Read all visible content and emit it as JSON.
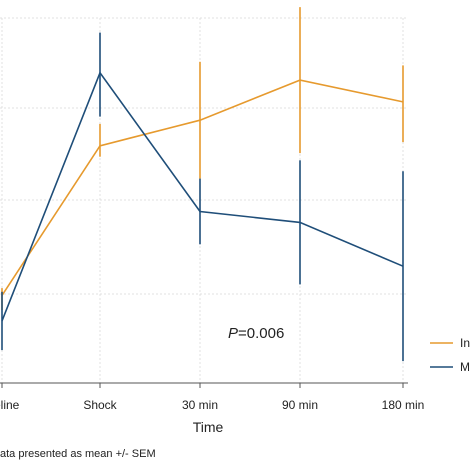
{
  "chart_data": {
    "type": "line",
    "categories": [
      "Baseline",
      "Shock",
      "30 min",
      "90 min",
      "180 min"
    ],
    "tick_labels": [
      "eline",
      "Shock",
      "30 min",
      "90 min",
      "180 min"
    ],
    "xlabel": "Time",
    "ylabel": "",
    "ylim": [
      0,
      1
    ],
    "grid": true,
    "legend_placement": "right",
    "series": [
      {
        "name": "In",
        "color": "#e69a2e",
        "values": [
          0.24,
          0.65,
          0.72,
          0.83,
          0.77
        ],
        "err_low": [
          0.2,
          0.62,
          0.56,
          0.63,
          0.66
        ],
        "err_high": [
          0.26,
          0.71,
          0.88,
          1.03,
          0.87
        ]
      },
      {
        "name": "M",
        "color": "#1f4e79",
        "values": [
          0.17,
          0.85,
          0.47,
          0.44,
          0.32
        ],
        "err_low": [
          0.09,
          0.73,
          0.38,
          0.27,
          0.06
        ],
        "err_high": [
          0.25,
          0.96,
          0.56,
          0.61,
          0.58
        ]
      }
    ],
    "annotation": {
      "prefix": "P",
      "text": "=0.006"
    },
    "footnote": "ata presented as mean +/- SEM"
  }
}
